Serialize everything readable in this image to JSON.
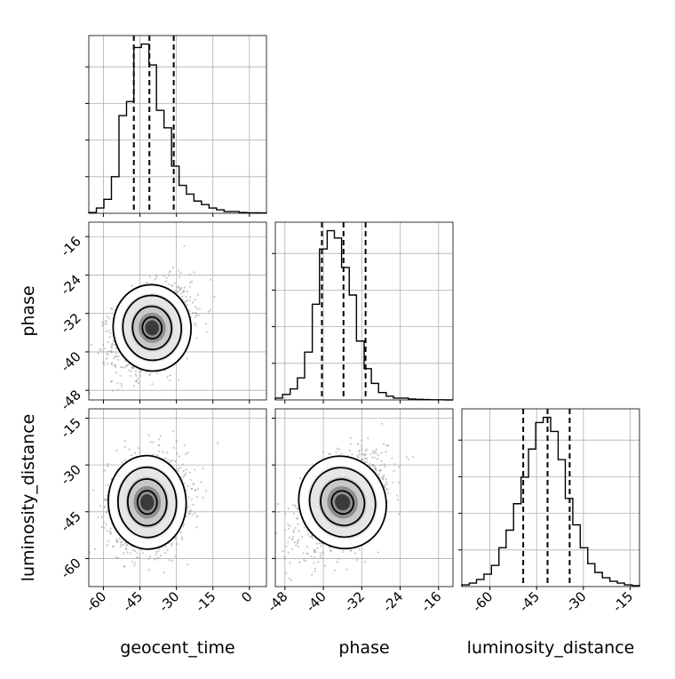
{
  "chart_data": {
    "type": "corner",
    "parameters": [
      "geocent_time",
      "phase",
      "luminosity_distance"
    ],
    "axis_labels": [
      "geocent_time",
      "phase",
      "luminosity_distance"
    ],
    "grid": true,
    "line_color": "#000000",
    "scatter_color": "#9a9a9a",
    "ranges": [
      [
        -66,
        7
      ],
      [
        -50,
        -13
      ],
      [
        -69,
        -12
      ]
    ],
    "ticks": [
      [
        "-60",
        "-45",
        "-30",
        "-15",
        "0"
      ],
      [
        "-48",
        "-40",
        "-32",
        "-24",
        "-16"
      ],
      [
        "-60",
        "-45",
        "-30",
        "-15"
      ]
    ],
    "quantiles": [
      [
        -47.5,
        -41.1,
        -31.1
      ],
      [
        -40.3,
        -35.8,
        -31.2
      ],
      [
        -49.3,
        -41.5,
        -34.4
      ]
    ],
    "histograms": [
      {
        "parameter": "geocent_time",
        "bin_edges": [
          -66,
          -62.9,
          -59.8,
          -56.7,
          -53.6,
          -50.5,
          -47.5,
          -44.4,
          -41.3,
          -38.2,
          -35.1,
          -32,
          -28.9,
          -25.9,
          -22.8,
          -19.7,
          -16.6,
          -13.5,
          -10.4,
          -7.3,
          -4.2,
          -1.1,
          2,
          5,
          7
        ],
        "counts": [
          0.5,
          3,
          8,
          21,
          56,
          64,
          95,
          97,
          85,
          59,
          49,
          27,
          16,
          11,
          7,
          5,
          3,
          2,
          1,
          1,
          0.5,
          0.3,
          0.3,
          0.2
        ]
      },
      {
        "parameter": "phase",
        "bin_edges": [
          -50,
          -48.5,
          -46.9,
          -45.4,
          -43.9,
          -42.3,
          -40.8,
          -39.2,
          -37.7,
          -36.2,
          -34.6,
          -33.1,
          -31.5,
          -30,
          -28.5,
          -26.9,
          -25.4,
          -23.9,
          -22.3,
          -20.8,
          -19.2,
          -17.7,
          -16.2,
          -14.6,
          -13
        ],
        "counts": [
          1,
          3,
          6,
          12,
          26,
          52,
          82,
          92,
          88,
          72,
          57,
          32,
          17,
          9,
          4,
          2,
          1,
          1,
          0.5,
          0.3,
          0.2,
          0.1,
          0.1,
          0
        ]
      },
      {
        "parameter": "luminosity_distance",
        "bin_edges": [
          -69,
          -66.6,
          -64.3,
          -61.9,
          -59.5,
          -57.1,
          -54.8,
          -52.4,
          -50,
          -47.6,
          -45.3,
          -42.9,
          -40.5,
          -38.1,
          -35.8,
          -33.4,
          -31,
          -28.6,
          -26.3,
          -23.9,
          -21.5,
          -19.1,
          -16.8,
          -14.4,
          -12
        ],
        "counts": [
          1,
          2,
          4,
          7,
          12,
          22,
          32,
          47,
          62,
          78,
          93,
          96,
          88,
          72,
          50,
          35,
          22,
          13,
          8,
          5,
          3,
          2,
          1,
          0.5
        ]
      }
    ],
    "scatter_2d": [
      {
        "x": "geocent_time",
        "y": "phase",
        "mean": [
          -40,
          -35
        ],
        "sd": [
          8,
          4.5
        ],
        "corr": 0.32
      },
      {
        "x": "geocent_time",
        "y": "luminosity_distance",
        "mean": [
          -42,
          -42
        ],
        "sd": [
          8,
          7.5
        ],
        "corr": 0.1
      },
      {
        "x": "phase",
        "y": "luminosity_distance",
        "mean": [
          -36,
          -42
        ],
        "sd": [
          4.5,
          7.5
        ],
        "corr": 0.5
      }
    ],
    "contour_levels_sigma": [
      0.5,
      1,
      1.5,
      2
    ]
  }
}
